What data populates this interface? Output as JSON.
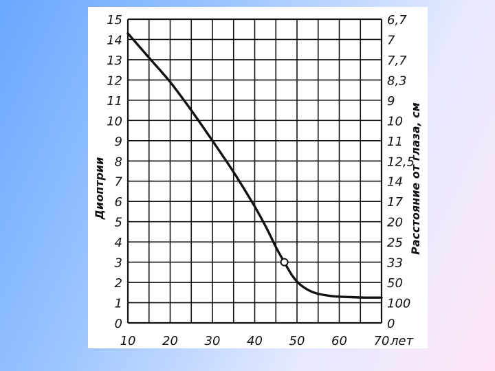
{
  "chart_data": {
    "type": "line",
    "title": "",
    "xlabel": "",
    "x_unit": "лет",
    "ylabel_left": "Диоптрии",
    "ylabel_right": "Расстояние от глаза, см",
    "xlim": [
      10,
      70
    ],
    "ylim": [
      0,
      15
    ],
    "x_ticks": [
      10,
      20,
      30,
      40,
      50,
      60,
      70
    ],
    "y_ticks_left": [
      "0",
      "1",
      "2",
      "3",
      "4",
      "5",
      "6",
      "7",
      "8",
      "9",
      "10",
      "11",
      "12",
      "13",
      "14",
      "15"
    ],
    "y_ticks_right": [
      {
        "y": 0,
        "label": "0"
      },
      {
        "y": 1,
        "label": "100"
      },
      {
        "y": 2,
        "label": "50"
      },
      {
        "y": 3,
        "label": "33"
      },
      {
        "y": 4,
        "label": "25"
      },
      {
        "y": 5,
        "label": "20"
      },
      {
        "y": 6,
        "label": "17"
      },
      {
        "y": 7,
        "label": "14"
      },
      {
        "y": 8,
        "label": "12,5"
      },
      {
        "y": 9,
        "label": "11"
      },
      {
        "y": 10,
        "label": "10"
      },
      {
        "y": 11,
        "label": "9"
      },
      {
        "y": 12,
        "label": "8,3"
      },
      {
        "y": 13,
        "label": "7,7"
      },
      {
        "y": 14,
        "label": "7"
      },
      {
        "y": 15,
        "label": "6,7"
      }
    ],
    "grid": true,
    "series": [
      {
        "points": [
          {
            "x": 10,
            "y": 14.3
          },
          {
            "x": 15,
            "y": 13.1
          },
          {
            "x": 20,
            "y": 11.9
          },
          {
            "x": 25,
            "y": 10.5
          },
          {
            "x": 30,
            "y": 9.0
          },
          {
            "x": 35,
            "y": 7.45
          },
          {
            "x": 40,
            "y": 5.75
          },
          {
            "x": 43,
            "y": 4.6
          },
          {
            "x": 45,
            "y": 3.75
          },
          {
            "x": 47,
            "y": 3.0
          },
          {
            "x": 49,
            "y": 2.3
          },
          {
            "x": 51,
            "y": 1.85
          },
          {
            "x": 54,
            "y": 1.5
          },
          {
            "x": 58,
            "y": 1.33
          },
          {
            "x": 62,
            "y": 1.28
          },
          {
            "x": 66,
            "y": 1.25
          },
          {
            "x": 70,
            "y": 1.25
          }
        ]
      }
    ],
    "marker": {
      "x": 47,
      "y": 3.0
    },
    "colors": {
      "line": "#111111",
      "grid": "#111111",
      "marker_fill": "#ffffff"
    }
  }
}
